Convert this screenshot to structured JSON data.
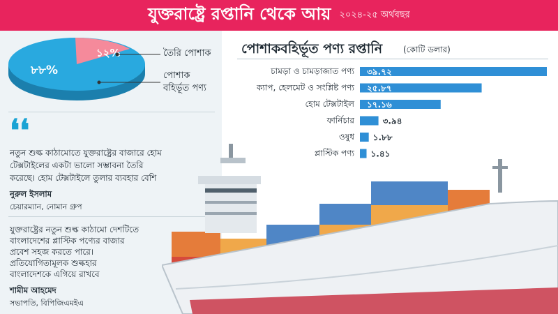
{
  "header": {
    "title": "যুক্তরাষ্ট্রে রপ্তানি থেকে আয়",
    "subtitle": "২০২৪-২৫ অর্থবছর"
  },
  "pie": {
    "slices": [
      {
        "label": "তৈরি পোশাক",
        "percent": 12,
        "value_label": "১২%",
        "color": "#f58a9b"
      },
      {
        "label_line1": "পোশাক",
        "label_line2": "বহির্ভূত পণ্য",
        "percent": 88,
        "value_label": "৮৮%",
        "color": "#29a9df"
      }
    ]
  },
  "quotes": [
    {
      "lines": [
        "নতুন শুল্ক কাঠামোতে যুক্তরাষ্ট্রের বাজারে হোম",
        "টেক্সটাইলের একটা ভালো সম্ভাবনা তৈরি",
        "করেছে। হোম টেক্সটাইলে তুলার ব্যবহার বেশি"
      ],
      "name": "নুরুল ইসলাম",
      "role": "চেয়ারম্যান, নোমান গ্রুপ"
    },
    {
      "lines": [
        "যুক্তরাষ্ট্রের নতুন শুল্ক কাঠামো দেশটিতে",
        "বাংলাদেশের প্লাস্টিক পণ্যের বাজার",
        "প্রবেশ সহজ করতে পারে।",
        "প্রতিযোগিতামূলক শুল্কহার",
        "বাংলাদেশকে এগিয়ে রাখবে"
      ],
      "name": "শামীম আহমেদ",
      "role": "সভাপতি, বিপিজিএমইএ"
    }
  ],
  "colors": {
    "header": "#e8245d",
    "bar": "#2f8fd6",
    "pie_rmg": "#f58a9b",
    "pie_non_rmg": "#29a9df",
    "hull": "#eef1f4",
    "hull_bottom": "#cf5362"
  },
  "chart_data": {
    "type": "bar",
    "orientation": "horizontal",
    "title": "পোশাকবহির্ভূত পণ্য রপ্তানি",
    "unit": "(কোটি ডলার)",
    "categories": [
      "চামড়া ও চামড়াজাত পণ্য",
      "ক্যাপ, হেলমেট ও সংশ্লিষ্ট পণ্য",
      "হোম টেক্সটাইল",
      "ফার্নিচার",
      "ওষুধ",
      "প্লাস্টিক পণ্য"
    ],
    "values": [
      39.72,
      25.87,
      17.16,
      3.94,
      1.88,
      1.41
    ],
    "value_labels": [
      "৩৯.৭২",
      "২৫.৮৭",
      "১৭.১৬",
      "৩.৯৪",
      "১.৮৮",
      "১.৪১"
    ]
  }
}
